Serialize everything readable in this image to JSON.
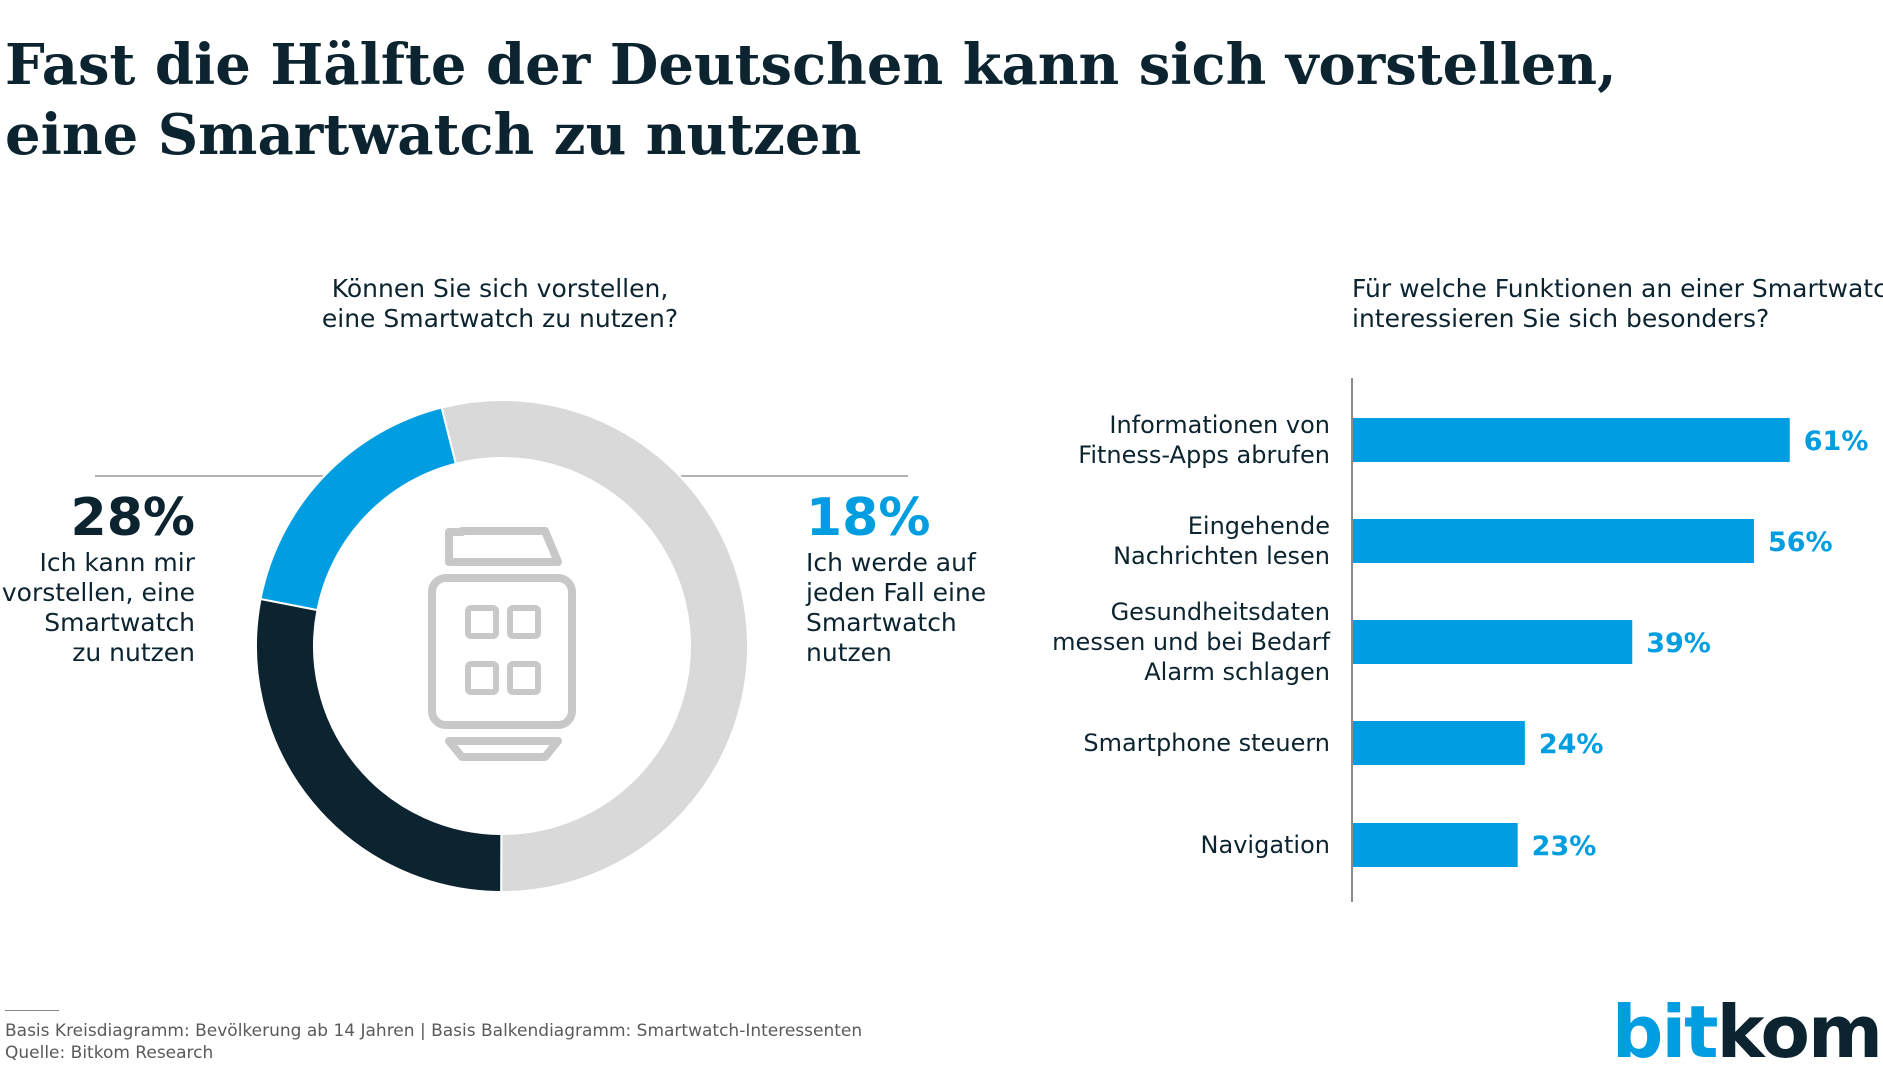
{
  "title_lines": [
    "Fast die Hälfte der Deutschen kann sich vorstellen,",
    "eine Smartwatch zu nutzen"
  ],
  "colors": {
    "dark": "#0b2430",
    "blue": "#009de0",
    "grey": "#d9d9d9",
    "icon": "#c8c8c8",
    "text": "#0b2430"
  },
  "chart_data": [
    {
      "type": "pie",
      "variant": "donut",
      "title_lines": [
        "Können Sie sich vorstellen,",
        "eine Smartwatch zu nutzen?"
      ],
      "center_icon": "smartwatch-icon",
      "segments": [
        {
          "label_lines": [
            "Ich werde auf",
            "jeden Fall eine",
            "Smartwatch",
            "nutzen"
          ],
          "value": 18,
          "display": "18%",
          "color": "#009de0"
        },
        {
          "label_lines": [],
          "value": 54,
          "display": "",
          "color": "#d9d9d9"
        },
        {
          "label_lines": [
            "Ich kann mir",
            "vorstellen, eine",
            "Smartwatch",
            "zu nutzen"
          ],
          "value": 28,
          "display": "28%",
          "color": "#0b2430"
        }
      ]
    },
    {
      "type": "bar",
      "orientation": "horizontal",
      "title_lines": [
        "Für welche Funktionen an einer Smartwatch",
        "interessieren Sie sich besonders?"
      ],
      "xlim": [
        0,
        100
      ],
      "color": "#009de0",
      "categories": [
        [
          "Informationen von",
          "Fitness-Apps abrufen"
        ],
        [
          "Eingehende",
          "Nachrichten lesen"
        ],
        [
          "Gesundheitsdaten",
          "messen und bei Bedarf",
          "Alarm schlagen"
        ],
        [
          "Smartphone steuern"
        ],
        [
          "Navigation"
        ]
      ],
      "values": [
        61,
        56,
        39,
        24,
        23
      ],
      "value_labels": [
        "61%",
        "56%",
        "39%",
        "24%",
        "23%"
      ]
    }
  ],
  "footer": {
    "basis": "Basis Kreisdiagramm: Bevölkerung ab 14 Jahren | Basis Balkendiagramm: Smartwatch-Interessenten",
    "source": "Quelle: Bitkom Research"
  },
  "logo": {
    "part1": "bit",
    "part2": "kom"
  }
}
